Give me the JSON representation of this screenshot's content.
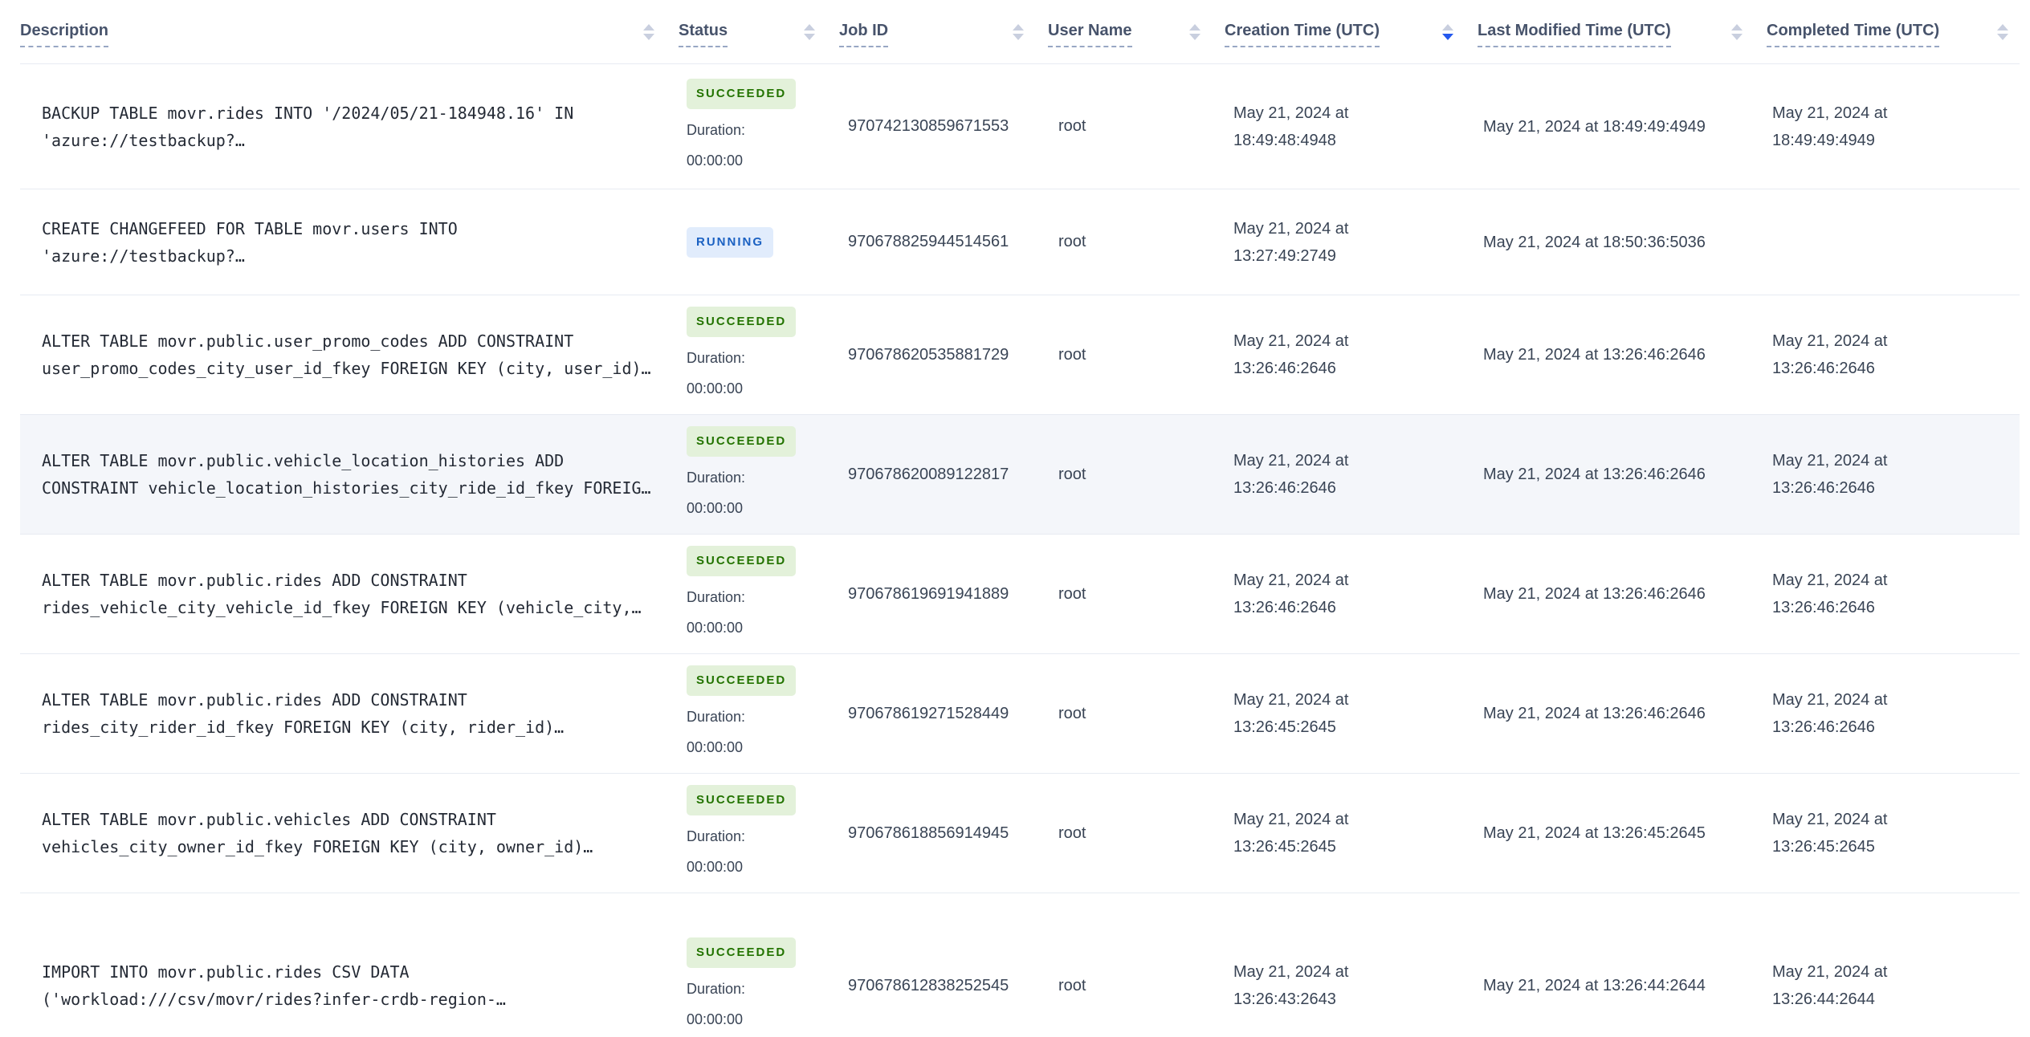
{
  "table": {
    "columns": [
      {
        "key": "description",
        "label": "Description",
        "sort": "none"
      },
      {
        "key": "status",
        "label": "Status",
        "sort": "none"
      },
      {
        "key": "job_id",
        "label": "Job ID",
        "sort": "none"
      },
      {
        "key": "user_name",
        "label": "User Name",
        "sort": "none"
      },
      {
        "key": "creation",
        "label": "Creation Time (UTC)",
        "sort": "desc"
      },
      {
        "key": "modified",
        "label": "Last Modified Time (UTC)",
        "sort": "none"
      },
      {
        "key": "completed",
        "label": "Completed Time (UTC)",
        "sort": "none"
      }
    ],
    "duration_label": "Duration:",
    "duration_value": "00:00:00",
    "rows": [
      {
        "description": "BACKUP TABLE movr.rides INTO '/2024/05/21-184948.16' IN\n'azure://testbackup?…",
        "status": "SUCCEEDED",
        "has_duration": true,
        "job_id": "970742130859671553",
        "user_name": "root",
        "creation": "May 21, 2024 at\n18:49:48:4948",
        "modified": "May 21, 2024 at 18:49:49:4949",
        "completed": "May 21, 2024 at\n18:49:49:4949",
        "highlighted": false
      },
      {
        "description": "CREATE CHANGEFEED FOR TABLE movr.users INTO\n'azure://testbackup?…",
        "status": "RUNNING",
        "has_duration": false,
        "job_id": "970678825944514561",
        "user_name": "root",
        "creation": "May 21, 2024 at\n13:27:49:2749",
        "modified": "May 21, 2024 at 18:50:36:5036",
        "completed": "",
        "highlighted": false
      },
      {
        "description": "ALTER TABLE movr.public.user_promo_codes ADD CONSTRAINT\nuser_promo_codes_city_user_id_fkey FOREIGN KEY (city, user_id)…",
        "status": "SUCCEEDED",
        "has_duration": true,
        "job_id": "970678620535881729",
        "user_name": "root",
        "creation": "May 21, 2024 at\n13:26:46:2646",
        "modified": "May 21, 2024 at 13:26:46:2646",
        "completed": "May 21, 2024 at\n13:26:46:2646",
        "highlighted": false
      },
      {
        "description": "ALTER TABLE movr.public.vehicle_location_histories ADD\nCONSTRAINT vehicle_location_histories_city_ride_id_fkey FOREIG…",
        "status": "SUCCEEDED",
        "has_duration": true,
        "job_id": "970678620089122817",
        "user_name": "root",
        "creation": "May 21, 2024 at\n13:26:46:2646",
        "modified": "May 21, 2024 at 13:26:46:2646",
        "completed": "May 21, 2024 at\n13:26:46:2646",
        "highlighted": true
      },
      {
        "description": "ALTER TABLE movr.public.rides ADD CONSTRAINT\nrides_vehicle_city_vehicle_id_fkey FOREIGN KEY (vehicle_city,…",
        "status": "SUCCEEDED",
        "has_duration": true,
        "job_id": "970678619691941889",
        "user_name": "root",
        "creation": "May 21, 2024 at\n13:26:46:2646",
        "modified": "May 21, 2024 at 13:26:46:2646",
        "completed": "May 21, 2024 at\n13:26:46:2646",
        "highlighted": false
      },
      {
        "description": "ALTER TABLE movr.public.rides ADD CONSTRAINT\nrides_city_rider_id_fkey FOREIGN KEY (city, rider_id)…",
        "status": "SUCCEEDED",
        "has_duration": true,
        "job_id": "970678619271528449",
        "user_name": "root",
        "creation": "May 21, 2024 at\n13:26:45:2645",
        "modified": "May 21, 2024 at 13:26:46:2646",
        "completed": "May 21, 2024 at\n13:26:46:2646",
        "highlighted": false
      },
      {
        "description": "ALTER TABLE movr.public.vehicles ADD CONSTRAINT\nvehicles_city_owner_id_fkey FOREIGN KEY (city, owner_id)…",
        "status": "SUCCEEDED",
        "has_duration": true,
        "job_id": "970678618856914945",
        "user_name": "root",
        "creation": "May 21, 2024 at\n13:26:45:2645",
        "modified": "May 21, 2024 at 13:26:45:2645",
        "completed": "May 21, 2024 at\n13:26:45:2645",
        "highlighted": false
      },
      {
        "description": "IMPORT INTO movr.public.rides CSV DATA\n('workload:///csv/movr/rides?infer-crdb-region-…",
        "status": "SUCCEEDED",
        "has_duration": true,
        "job_id": "970678612838252545",
        "user_name": "root",
        "creation": "May 21, 2024 at\n13:26:43:2643",
        "modified": "May 21, 2024 at 13:26:44:2644",
        "completed": "May 21, 2024 at\n13:26:44:2644",
        "highlighted": false
      }
    ]
  },
  "colors": {
    "text_primary": "#394455",
    "description_text": "#242a35",
    "header_text": "#47536b",
    "row_border": "#e7ebf2",
    "row_highlight_bg": "#f4f6fa",
    "badge_succeeded_bg": "#e3f1da",
    "badge_succeeded_text": "#237300",
    "badge_running_bg": "#e1ecfc",
    "badge_running_text": "#1b61c2",
    "sort_arrow_inactive": "#c9cfdf",
    "sort_arrow_active": "#2458ee",
    "header_underline": "#98a7c4"
  }
}
